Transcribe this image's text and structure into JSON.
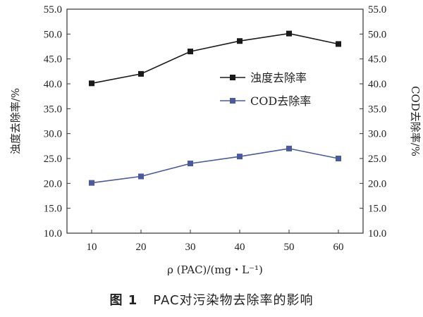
{
  "chart_data": {
    "type": "line",
    "x": [
      10,
      20,
      30,
      40,
      50,
      60
    ],
    "xlim": [
      5,
      65
    ],
    "xlabel": "ρ (PAC)/(mg・L⁻¹)",
    "ylabel_left": "浊度去除率/%",
    "ylabel_right": "COD去除率/%",
    "ylim": [
      10,
      55
    ],
    "yticks": [
      10.0,
      15.0,
      20.0,
      25.0,
      30.0,
      35.0,
      40.0,
      45.0,
      50.0,
      55.0
    ],
    "legend_placement": "center-right",
    "grid": false,
    "series": [
      {
        "name": "浊度去除率",
        "values": [
          40.1,
          42.0,
          46.5,
          48.6,
          50.1,
          48.0
        ],
        "color": "#1a1a1a",
        "axis": "left",
        "marker": "square"
      },
      {
        "name": "COD去除率",
        "values": [
          20.1,
          21.4,
          24.0,
          25.4,
          27.0,
          25.0
        ],
        "color": "#4a5a9a",
        "axis": "right",
        "marker": "square"
      }
    ]
  },
  "caption": {
    "figure_number": "图 1",
    "text": "PAC对污染物去除率的影响"
  }
}
